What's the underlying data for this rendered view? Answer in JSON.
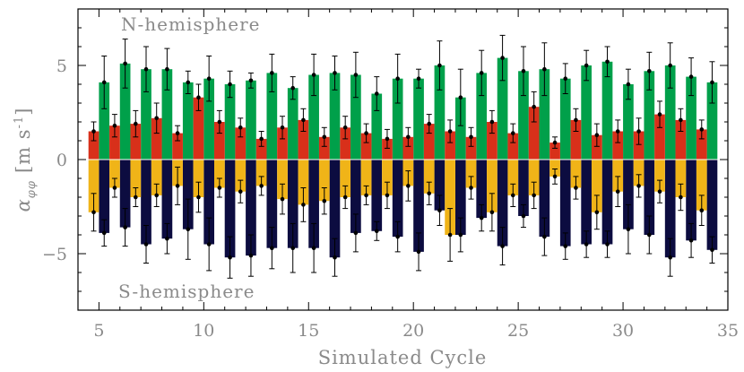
{
  "chart_data": {
    "type": "bar",
    "xlabel": "Simulated Cycle",
    "ylabel_main": "α",
    "ylabel_sub": "φφ",
    "ylabel_units": "[m s",
    "ylabel_exp": "-1",
    "ylabel_close": "]",
    "xlim": [
      4,
      35
    ],
    "ylim": [
      -8,
      8
    ],
    "xticks": [
      5,
      10,
      15,
      20,
      25,
      30,
      35
    ],
    "yticks": [
      -5,
      0,
      5
    ],
    "annotations": {
      "north": "N-hemisphere",
      "south": "S-hemisphere"
    },
    "colors": {
      "north_total": "#00a04a",
      "north_part": "#d8301a",
      "south_total": "#0c0c40",
      "south_part": "#f0b418",
      "error": "#000000",
      "frame": "#000000"
    },
    "cycles": [
      5,
      6,
      7,
      8,
      9,
      10,
      11,
      12,
      13,
      14,
      15,
      16,
      17,
      18,
      19,
      20,
      21,
      22,
      23,
      24,
      25,
      26,
      27,
      28,
      29,
      30,
      31,
      32,
      33,
      34
    ],
    "series": [
      {
        "values": [
          4.1,
          5.1,
          4.8,
          4.8,
          4.1,
          4.3,
          4.0,
          4.2,
          4.6,
          3.8,
          4.5,
          4.6,
          4.5,
          3.5,
          4.3,
          4.3,
          5.0,
          3.3,
          4.6,
          5.4,
          4.7,
          4.8,
          4.3,
          5.0,
          5.2,
          4.0,
          4.7,
          5.0,
          4.4,
          4.1
        ],
        "err": [
          1.4,
          1.3,
          1.2,
          1.1,
          0.6,
          1.2,
          0.7,
          0.4,
          1.0,
          0.6,
          1.1,
          0.9,
          1.2,
          0.9,
          1.3,
          0.5,
          1.3,
          1.5,
          1.2,
          1.2,
          1.3,
          1.4,
          0.8,
          0.8,
          0.8,
          0.8,
          1.0,
          1.2,
          1.0,
          1.1
        ]
      },
      {
        "values": [
          1.5,
          1.8,
          1.9,
          2.2,
          1.4,
          3.3,
          2.0,
          1.7,
          1.1,
          1.7,
          2.1,
          1.2,
          1.7,
          1.4,
          1.1,
          1.2,
          1.9,
          1.5,
          1.2,
          2.0,
          1.4,
          2.8,
          0.9,
          2.1,
          1.3,
          1.5,
          1.5,
          2.4,
          2.1,
          1.6
        ],
        "err": [
          0.5,
          0.6,
          0.7,
          0.8,
          0.4,
          0.7,
          0.6,
          0.5,
          0.4,
          0.6,
          0.6,
          0.5,
          0.6,
          0.5,
          0.5,
          0.5,
          0.5,
          0.6,
          0.5,
          0.6,
          0.5,
          0.8,
          0.3,
          0.6,
          0.6,
          0.6,
          0.7,
          0.7,
          0.6,
          0.5
        ]
      },
      {
        "values": [
          -3.9,
          -3.6,
          -4.5,
          -4.2,
          -3.7,
          -4.5,
          -5.2,
          -5.1,
          -4.7,
          -4.7,
          -4.7,
          -5.2,
          -3.9,
          -3.8,
          -4.1,
          -4.9,
          -2.7,
          -4.0,
          -3.1,
          -4.6,
          -3.0,
          -4.1,
          -4.6,
          -4.5,
          -4.5,
          -3.7,
          -4.0,
          -5.2,
          -4.3,
          -4.8
        ],
        "err": [
          0.7,
          1.0,
          1.0,
          0.8,
          1.6,
          1.4,
          1.1,
          1.1,
          1.1,
          1.3,
          1.3,
          1.0,
          1.0,
          0.5,
          0.8,
          1.0,
          0.8,
          0.9,
          0.7,
          1.0,
          0.6,
          1.0,
          0.7,
          0.7,
          0.7,
          1.3,
          1.0,
          1.0,
          0.9,
          0.7
        ]
      },
      {
        "values": [
          -2.8,
          -1.5,
          -2.0,
          -1.9,
          -1.4,
          -2.0,
          -1.5,
          -1.7,
          -1.4,
          -2.1,
          -2.4,
          -2.2,
          -2.0,
          -1.9,
          -1.9,
          -1.4,
          -1.8,
          -4.0,
          -1.5,
          -2.8,
          -1.9,
          -1.9,
          -0.9,
          -1.5,
          -2.8,
          -1.7,
          -1.4,
          -1.7,
          -2.0,
          -2.7
        ],
        "err": [
          1.0,
          0.5,
          0.5,
          0.6,
          1.0,
          0.8,
          0.5,
          0.6,
          0.5,
          0.8,
          0.9,
          0.7,
          0.6,
          0.5,
          0.7,
          0.8,
          0.6,
          1.4,
          0.6,
          1.0,
          0.6,
          0.7,
          0.4,
          0.6,
          0.9,
          0.8,
          0.6,
          0.6,
          0.7,
          0.8
        ]
      }
    ]
  }
}
